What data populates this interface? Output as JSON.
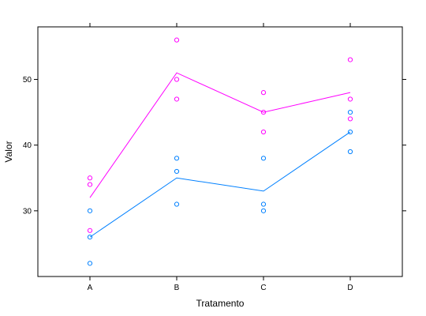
{
  "chart_data": {
    "type": "scatter",
    "title": "",
    "xlabel": "Tratamento",
    "ylabel": "Valor",
    "categories": [
      "A",
      "B",
      "C",
      "D"
    ],
    "ylim": [
      20,
      58
    ],
    "yticks": [
      30,
      40,
      50
    ],
    "grid": false,
    "legend": "none",
    "series": [
      {
        "color": "#ff00ff",
        "points": {
          "A": [
            35,
            34,
            27
          ],
          "B": [
            56,
            50,
            47
          ],
          "C": [
            48,
            45,
            42
          ],
          "D": [
            53,
            47,
            44
          ]
        },
        "line": [
          32,
          51,
          45,
          48
        ]
      },
      {
        "color": "#0080ff",
        "points": {
          "A": [
            30,
            26,
            22
          ],
          "B": [
            38,
            36,
            31
          ],
          "C": [
            38,
            31,
            30
          ],
          "D": [
            45,
            42,
            39
          ]
        },
        "line": [
          26,
          35,
          33,
          42
        ]
      }
    ]
  }
}
